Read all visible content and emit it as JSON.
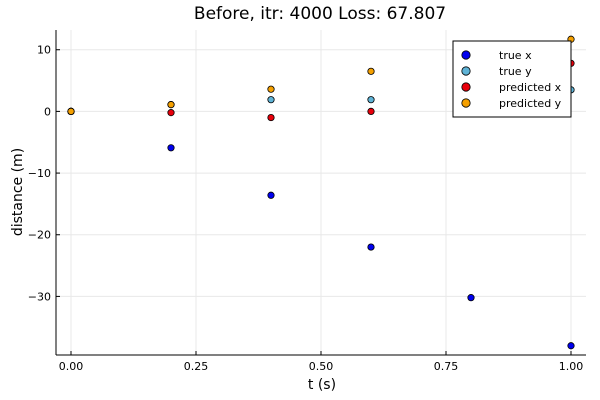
{
  "chart_data": {
    "type": "scatter",
    "title": "Before, itr: 4000 Loss: 67.807",
    "xlabel": "t (s)",
    "ylabel": "distance (m)",
    "xlim": [
      -0.03,
      1.03
    ],
    "ylim": [
      -39.5,
      13.2
    ],
    "x_ticks": [
      0.0,
      0.25,
      0.5,
      0.75,
      1.0
    ],
    "x_tick_labels": [
      "0.00",
      "0.25",
      "0.50",
      "0.75",
      "1.00"
    ],
    "y_ticks": [
      -30,
      -20,
      -10,
      0,
      10
    ],
    "y_tick_labels": [
      "−30",
      "−20",
      "−10",
      "0",
      "10"
    ],
    "grid": true,
    "legend_position": "top-right",
    "series": [
      {
        "name": "true x",
        "color": "#0000ee",
        "points": [
          [
            0.0,
            0.0
          ],
          [
            0.2,
            -5.9
          ],
          [
            0.4,
            -13.6
          ],
          [
            0.6,
            -22.0
          ],
          [
            0.8,
            -30.2
          ],
          [
            1.0,
            -38.0
          ]
        ]
      },
      {
        "name": "true y",
        "color": "#5fb3d6",
        "points": [
          [
            0.0,
            0.0
          ],
          [
            0.2,
            1.1
          ],
          [
            0.4,
            1.9
          ],
          [
            0.6,
            1.9
          ],
          [
            1.0,
            3.5
          ]
        ]
      },
      {
        "name": "predicted x",
        "color": "#e8000b",
        "points": [
          [
            0.0,
            0.0
          ],
          [
            0.2,
            -0.2
          ],
          [
            0.4,
            -1.0
          ],
          [
            0.6,
            0.0
          ],
          [
            1.0,
            7.8
          ]
        ]
      },
      {
        "name": "predicted y",
        "color": "#f5a000",
        "points": [
          [
            0.0,
            0.0
          ],
          [
            0.2,
            1.1
          ],
          [
            0.4,
            3.6
          ],
          [
            0.6,
            6.5
          ],
          [
            1.0,
            11.7
          ]
        ]
      }
    ]
  }
}
